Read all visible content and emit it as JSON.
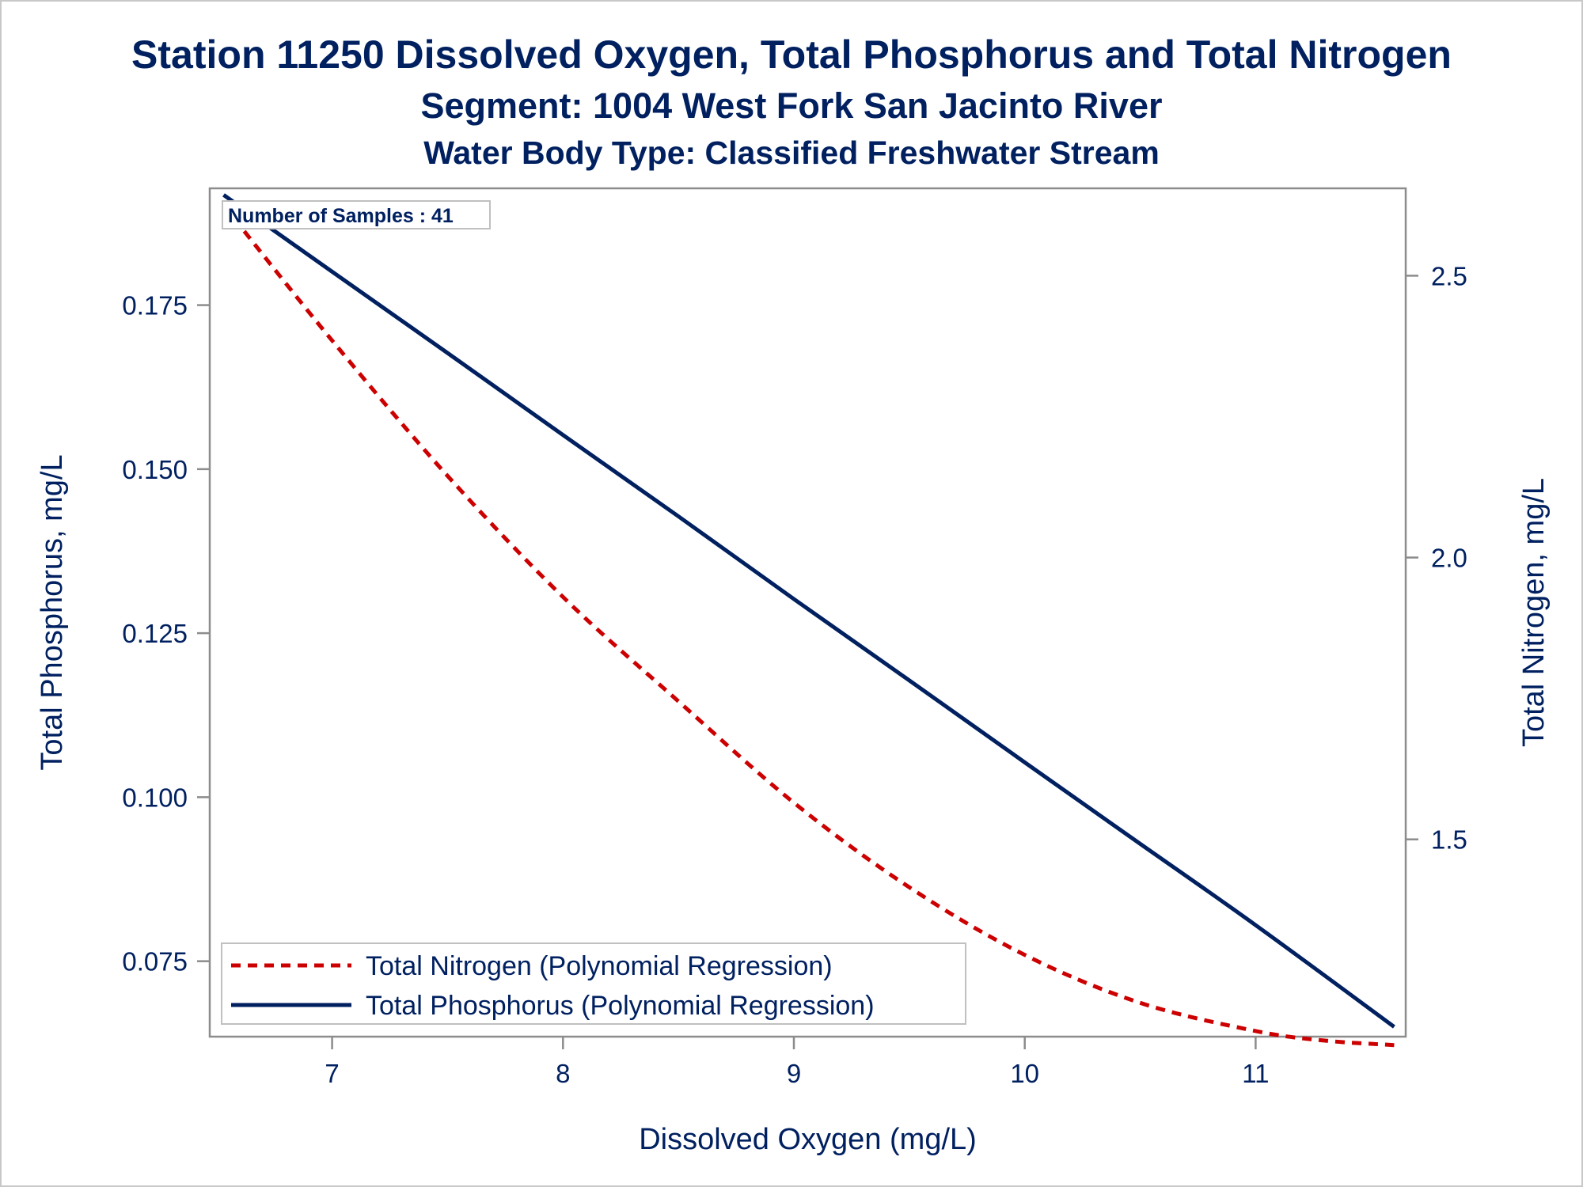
{
  "chart_data": {
    "type": "line",
    "title": "Station 11250  Dissolved Oxygen, Total Phosphorus and Total Nitrogen",
    "subtitle": "Segment: 1004  West Fork San Jacinto River",
    "subtitle2": "Water Body Type: Classified Freshwater Stream",
    "xlabel": "Dissolved Oxygen (mg/L)",
    "ylabel": "Total Phosphorus, mg/L",
    "y2label": "Total Nitrogen, mg/L",
    "xlim": [
      6.47,
      11.65
    ],
    "ylim": [
      0.0635,
      0.1928
    ],
    "y2lim": [
      1.15,
      2.655
    ],
    "xticks": [
      7,
      8,
      9,
      10,
      11
    ],
    "yticks": [
      0.075,
      0.1,
      0.125,
      0.15,
      0.175
    ],
    "ytick_labels": [
      "0.075",
      "0.100",
      "0.125",
      "0.150",
      "0.175"
    ],
    "y2ticks": [
      1.5,
      2.0,
      2.5
    ],
    "y2tick_labels": [
      "1.5",
      "2.0",
      "2.5"
    ],
    "inset": "Number of Samples : 41",
    "legend_position": "bottom-left",
    "grid": false,
    "series": [
      {
        "name": "Total Nitrogen (Polynomial Regression)",
        "axis": "y2",
        "color": "#cc0000",
        "style": "dashed",
        "x": [
          6.53,
          7.0,
          7.5,
          8.0,
          8.5,
          9.0,
          9.5,
          10.0,
          10.5,
          11.0,
          11.3,
          11.6
        ],
        "y": [
          2.625,
          2.385,
          2.145,
          1.93,
          1.745,
          1.565,
          1.415,
          1.295,
          1.21,
          1.16,
          1.143,
          1.135
        ]
      },
      {
        "name": "Total Phosphorus (Polynomial Regression)",
        "axis": "y",
        "color": "#002060",
        "style": "solid",
        "x": [
          6.53,
          7.0,
          7.5,
          8.0,
          8.5,
          9.0,
          9.5,
          10.0,
          10.5,
          11.0,
          11.6
        ],
        "y": [
          0.1918,
          0.1801,
          0.1677,
          0.1552,
          0.1428,
          0.1302,
          0.1178,
          0.1053,
          0.0929,
          0.0805,
          0.065
        ]
      }
    ]
  }
}
